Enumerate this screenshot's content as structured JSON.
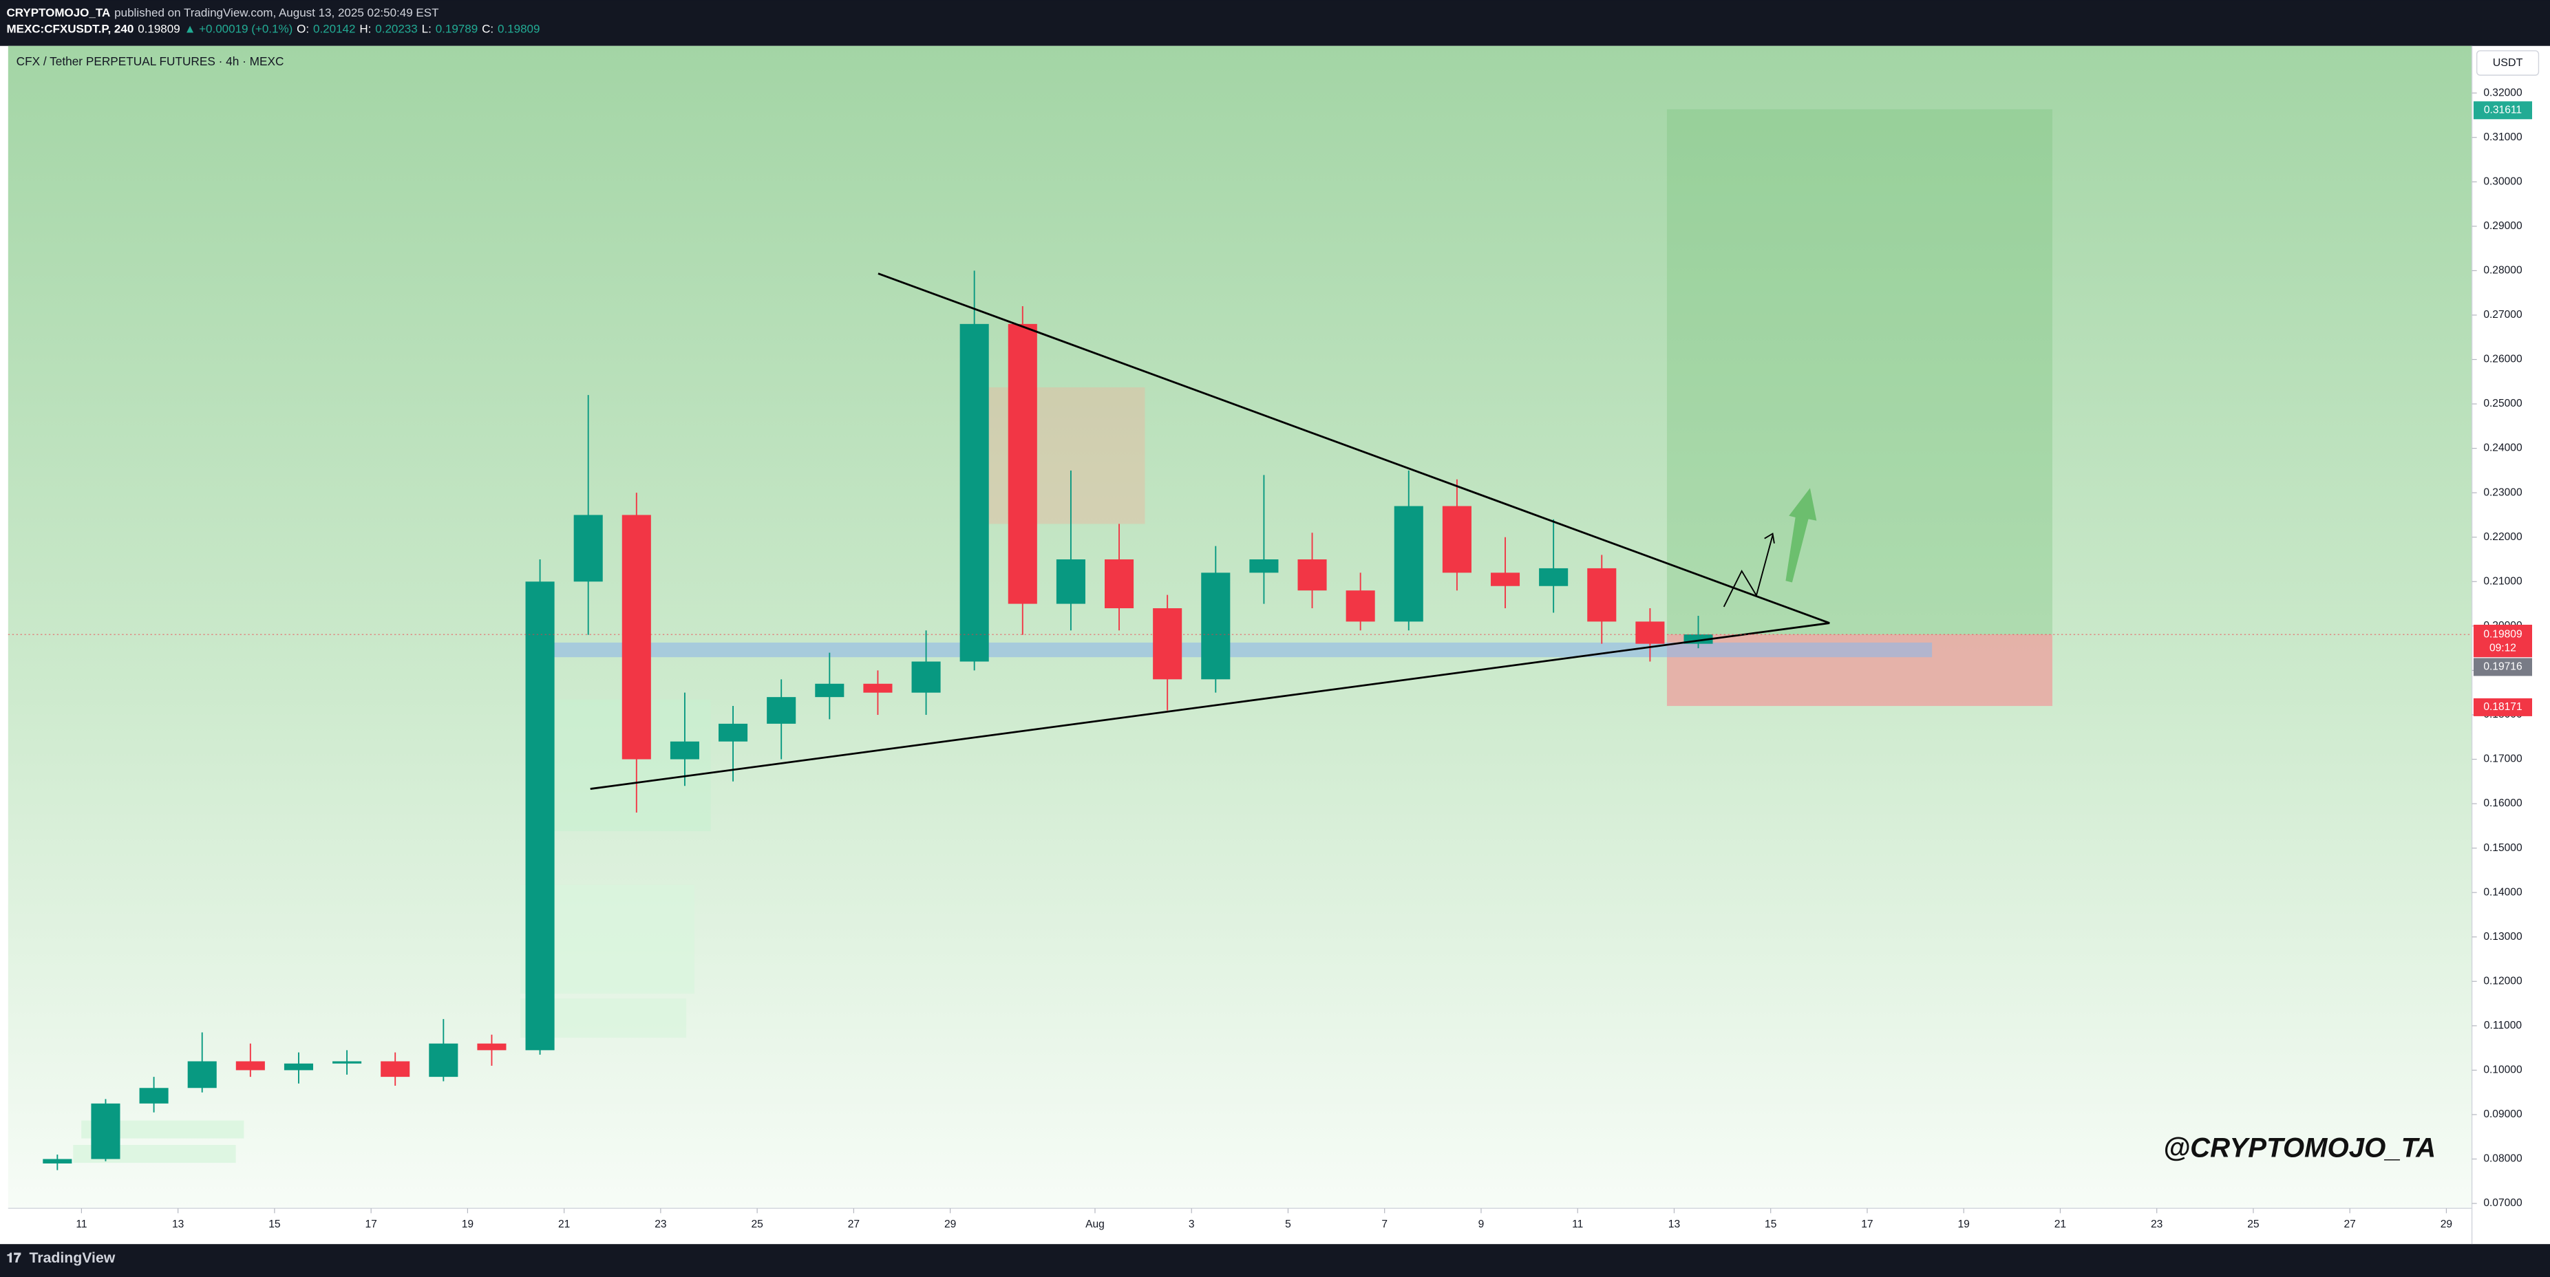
{
  "header": {
    "publisher": "CRYPTOMOJO_TA",
    "published": "published on TradingView.com, August 13, 2025 02:50:49 EST",
    "symbol": "MEXC:CFXUSDT.P, 240",
    "last": 0.19809,
    "change": "▲ +0.00019 (+0.1%)",
    "ohlc": [
      {
        "label": "O:",
        "value": 0.20142
      },
      {
        "label": "H:",
        "value": 0.20233
      },
      {
        "label": "L:",
        "value": 0.19789
      },
      {
        "label": "C:",
        "value": 0.19809
      }
    ]
  },
  "footer": {
    "brand": "TradingView"
  },
  "chart_data": {
    "type": "candlestick",
    "title": "CFX / Tether PERPETUAL FUTURES · 4h · MEXC",
    "currency": "USDT",
    "watermark": "@CRYPTOMOJO_TA",
    "up_color": "#089981",
    "down_color": "#f23645",
    "grid": false,
    "x": [
      10.5,
      11.5,
      12.5,
      13.5,
      14.5,
      15.5,
      16.5,
      17.5,
      18.5,
      19.5,
      20.5,
      21.5,
      22.5,
      23.5,
      24.5,
      25.5,
      26.5,
      27.5,
      28.5,
      29.5,
      30.5,
      31.5,
      32.5,
      33.5,
      34.5,
      35.5,
      36.5,
      37.5,
      38.5,
      39.5,
      40.5,
      41.5,
      42.5,
      43.5,
      44.5
    ],
    "open": [
      0.079,
      0.08,
      0.0925,
      0.096,
      0.102,
      0.1,
      0.1015,
      0.102,
      0.0985,
      0.106,
      0.1045,
      0.21,
      0.225,
      0.17,
      0.174,
      0.178,
      0.184,
      0.187,
      0.185,
      0.192,
      0.268,
      0.205,
      0.215,
      0.204,
      0.188,
      0.212,
      0.215,
      0.208,
      0.201,
      0.227,
      0.212,
      0.209,
      0.213,
      0.201,
      0.196
    ],
    "high": [
      0.081,
      0.0935,
      0.0985,
      0.1085,
      0.106,
      0.104,
      0.1045,
      0.104,
      0.1115,
      0.108,
      0.215,
      0.252,
      0.23,
      0.185,
      0.182,
      0.188,
      0.194,
      0.19,
      0.199,
      0.28,
      0.272,
      0.235,
      0.223,
      0.207,
      0.218,
      0.234,
      0.221,
      0.212,
      0.235,
      0.233,
      0.22,
      0.224,
      0.216,
      0.204,
      0.2023
    ],
    "low": [
      0.0775,
      0.0795,
      0.0905,
      0.095,
      0.0985,
      0.097,
      0.099,
      0.0965,
      0.0975,
      0.101,
      0.1035,
      0.198,
      0.158,
      0.164,
      0.165,
      0.17,
      0.179,
      0.18,
      0.18,
      0.19,
      0.198,
      0.199,
      0.199,
      0.181,
      0.185,
      0.205,
      0.204,
      0.199,
      0.199,
      0.208,
      0.204,
      0.203,
      0.196,
      0.192,
      0.195
    ],
    "close": [
      0.08,
      0.0925,
      0.096,
      0.102,
      0.1,
      0.1015,
      0.102,
      0.0985,
      0.106,
      0.1045,
      0.21,
      0.225,
      0.17,
      0.174,
      0.178,
      0.184,
      0.187,
      0.185,
      0.192,
      0.268,
      0.205,
      0.215,
      0.204,
      0.188,
      0.212,
      0.215,
      0.208,
      0.201,
      0.227,
      0.212,
      0.209,
      0.213,
      0.201,
      0.196,
      0.1981
    ],
    "xlim": [
      9.48,
      60.53
    ],
    "xticks": [
      11,
      13,
      15,
      17,
      19,
      21,
      23,
      25,
      27,
      29,
      {
        "value": 32,
        "label": "Aug"
      },
      {
        "value": 34,
        "label": "3"
      },
      {
        "value": 36,
        "label": "5"
      },
      {
        "value": 38,
        "label": "7"
      },
      {
        "value": 40,
        "label": "9"
      },
      {
        "value": 42,
        "label": "11"
      },
      {
        "value": 44,
        "label": "13"
      },
      {
        "value": 46,
        "label": "15"
      },
      {
        "value": 48,
        "label": "17"
      },
      {
        "value": 50,
        "label": "19"
      },
      {
        "value": 52,
        "label": "21"
      },
      {
        "value": 54,
        "label": "23"
      },
      {
        "value": 56,
        "label": "25"
      },
      {
        "value": 58,
        "label": "27"
      },
      {
        "value": 60,
        "label": "29"
      }
    ],
    "ylim": [
      0.0689,
      0.3306
    ],
    "yticks": [
      {
        "value": 0.07,
        "label": "0.07000"
      },
      {
        "value": 0.08,
        "label": "0.08000"
      },
      {
        "value": 0.09,
        "label": "0.09000"
      },
      {
        "value": 0.1,
        "label": "0.10000"
      },
      {
        "value": 0.11,
        "label": "0.11000"
      },
      {
        "value": 0.12,
        "label": "0.12000"
      },
      {
        "value": 0.13,
        "label": "0.13000"
      },
      {
        "value": 0.14,
        "label": "0.14000"
      },
      {
        "value": 0.15,
        "label": "0.15000"
      },
      {
        "value": 0.16,
        "label": "0.16000"
      },
      {
        "value": 0.17,
        "label": "0.17000"
      },
      {
        "value": 0.18,
        "label": "0.18000"
      },
      {
        "value": 0.19,
        "label": "0.19000"
      },
      {
        "value": 0.2,
        "label": "0.20000"
      },
      {
        "value": 0.21,
        "label": "0.21000"
      },
      {
        "value": 0.22,
        "label": "0.22000"
      },
      {
        "value": 0.23,
        "label": "0.23000"
      },
      {
        "value": 0.24,
        "label": "0.24000"
      },
      {
        "value": 0.25,
        "label": "0.25000"
      },
      {
        "value": 0.26,
        "label": "0.26000"
      },
      {
        "value": 0.27,
        "label": "0.27000"
      },
      {
        "value": 0.28,
        "label": "0.28000"
      },
      {
        "value": 0.29,
        "label": "0.29000"
      },
      {
        "value": 0.3,
        "label": "0.30000"
      },
      {
        "value": 0.31,
        "label": "0.31000"
      },
      {
        "value": 0.32,
        "label": "0.32000"
      }
    ],
    "price_markers": [
      {
        "value": 0.31611,
        "color": "#22ab94"
      },
      {
        "value": 0.19809,
        "color": "#f23645"
      },
      {
        "value": 0.19716,
        "color": "#787b86"
      },
      {
        "value": 0.18171,
        "color": "#f23645"
      }
    ],
    "countdown": "09:12"
  }
}
